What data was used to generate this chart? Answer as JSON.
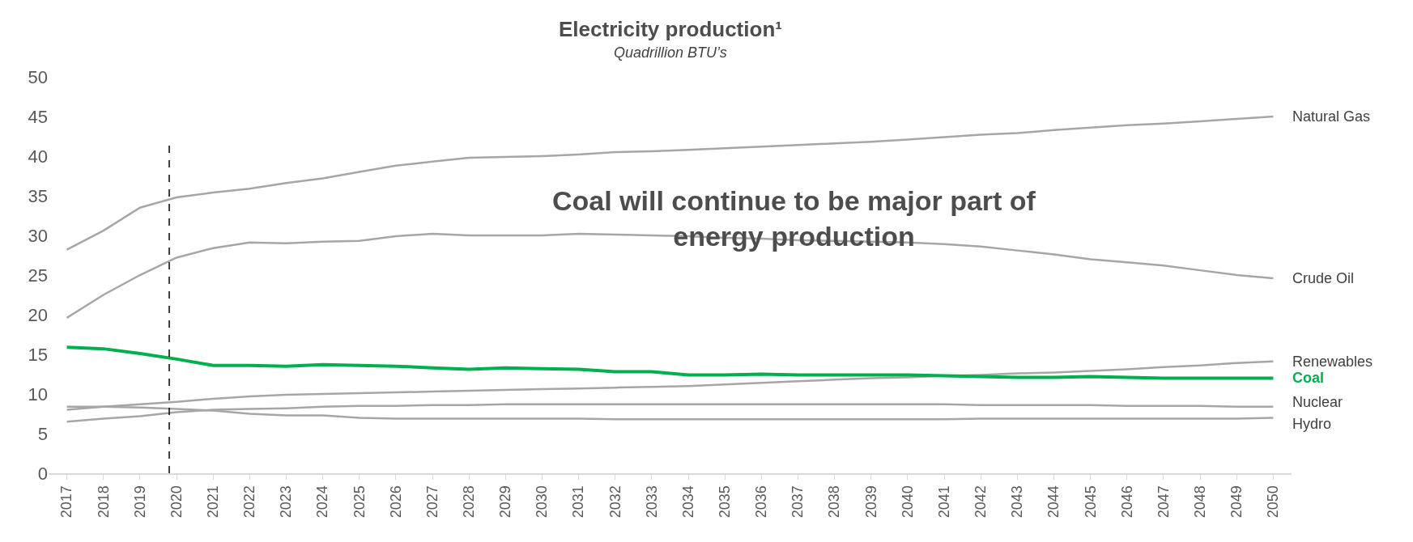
{
  "chart_data": {
    "type": "line",
    "title": "Electricity production¹",
    "subtitle": "Quadrillion BTU’s",
    "annotations": [
      "Coal will continue to be major part of\nenergy production"
    ],
    "x": [
      2017,
      2018,
      2019,
      2020,
      2021,
      2022,
      2023,
      2024,
      2025,
      2026,
      2027,
      2028,
      2029,
      2030,
      2031,
      2032,
      2033,
      2034,
      2035,
      2036,
      2037,
      2038,
      2039,
      2040,
      2041,
      2042,
      2043,
      2044,
      2045,
      2046,
      2047,
      2048,
      2049,
      2050
    ],
    "series": [
      {
        "name": "Natural Gas",
        "color": "#a6a6a6",
        "values": [
          28.2,
          30.6,
          33.5,
          34.8,
          35.4,
          35.9,
          36.6,
          37.2,
          38.0,
          38.8,
          39.3,
          39.8,
          39.9,
          40.0,
          40.2,
          40.5,
          40.6,
          40.8,
          41.0,
          41.2,
          41.4,
          41.6,
          41.8,
          42.1,
          42.4,
          42.7,
          42.9,
          43.3,
          43.6,
          43.9,
          44.1,
          44.4,
          44.7,
          45.0
        ]
      },
      {
        "name": "Crude Oil",
        "color": "#a6a6a6",
        "values": [
          19.6,
          22.5,
          25.0,
          27.2,
          28.4,
          29.1,
          29.0,
          29.2,
          29.3,
          29.9,
          30.2,
          30.0,
          30.0,
          30.0,
          30.2,
          30.1,
          30.0,
          29.9,
          29.7,
          29.6,
          29.4,
          29.3,
          29.2,
          29.1,
          28.9,
          28.6,
          28.1,
          27.6,
          27.0,
          26.6,
          26.2,
          25.6,
          25.0,
          24.6
        ]
      },
      {
        "name": "Renewables",
        "color": "#a6a6a6",
        "values": [
          8.0,
          8.4,
          8.7,
          9.0,
          9.4,
          9.7,
          9.9,
          10.0,
          10.1,
          10.2,
          10.3,
          10.4,
          10.5,
          10.6,
          10.7,
          10.8,
          10.9,
          11.0,
          11.2,
          11.4,
          11.6,
          11.8,
          12.0,
          12.1,
          12.3,
          12.4,
          12.6,
          12.7,
          12.9,
          13.1,
          13.4,
          13.6,
          13.9,
          14.1
        ]
      },
      {
        "name": "Coal",
        "color": "#00b050",
        "values": [
          15.9,
          15.7,
          15.1,
          14.4,
          13.6,
          13.6,
          13.5,
          13.7,
          13.6,
          13.5,
          13.3,
          13.1,
          13.3,
          13.2,
          13.1,
          12.8,
          12.8,
          12.4,
          12.4,
          12.5,
          12.4,
          12.4,
          12.4,
          12.4,
          12.3,
          12.2,
          12.1,
          12.1,
          12.2,
          12.1,
          12.0,
          12.0,
          12.0,
          12.0
        ]
      },
      {
        "name": "Nuclear",
        "color": "#a6a6a6",
        "values": [
          6.5,
          6.9,
          7.2,
          7.7,
          8.0,
          8.1,
          8.2,
          8.4,
          8.5,
          8.5,
          8.6,
          8.6,
          8.7,
          8.7,
          8.7,
          8.7,
          8.7,
          8.7,
          8.7,
          8.7,
          8.7,
          8.7,
          8.7,
          8.7,
          8.7,
          8.6,
          8.6,
          8.6,
          8.6,
          8.5,
          8.5,
          8.5,
          8.4,
          8.4
        ]
      },
      {
        "name": "Hydro",
        "color": "#a6a6a6",
        "values": [
          8.4,
          8.4,
          8.3,
          8.1,
          7.9,
          7.5,
          7.3,
          7.3,
          7.0,
          6.9,
          6.9,
          6.9,
          6.9,
          6.9,
          6.9,
          6.8,
          6.8,
          6.8,
          6.8,
          6.8,
          6.8,
          6.8,
          6.8,
          6.8,
          6.8,
          6.9,
          6.9,
          6.9,
          6.9,
          6.9,
          6.9,
          6.9,
          6.9,
          7.0
        ]
      }
    ],
    "xlim": [
      2016.5,
      2050.5
    ],
    "xticks": [
      2017,
      2018,
      2019,
      2020,
      2021,
      2022,
      2023,
      2024,
      2025,
      2026,
      2027,
      2028,
      2029,
      2030,
      2031,
      2032,
      2033,
      2034,
      2035,
      2036,
      2037,
      2038,
      2039,
      2040,
      2041,
      2042,
      2043,
      2044,
      2045,
      2046,
      2047,
      2048,
      2049,
      2050
    ],
    "ylim": [
      0,
      50
    ],
    "yticks": [
      0,
      5,
      10,
      15,
      20,
      25,
      30,
      35,
      40,
      45,
      50
    ],
    "ref_lines": [
      {
        "axis": "x",
        "value": 2019.8,
        "color": "#000000",
        "line_style": "dashed"
      }
    ],
    "legend": false,
    "marker": "none",
    "line_style": "solid"
  }
}
